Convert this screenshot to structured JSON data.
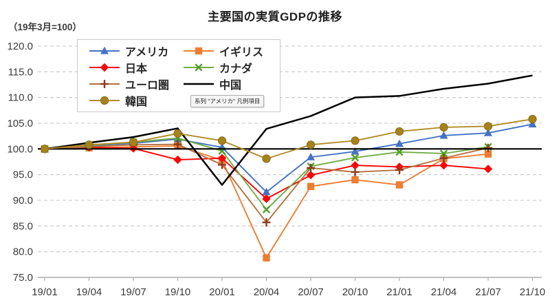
{
  "header": {
    "title": "主要国の実質GDPの推移",
    "unit_note": "（19年3月=100）"
  },
  "legend_tooltip": {
    "text": "系列 \"アメリカ\" 凡例項目"
  },
  "chart_data": {
    "type": "line",
    "title": "主要国の実質GDPの推移",
    "unit_note": "（19年3月=100）",
    "categories": [
      "19/01",
      "19/04",
      "19/07",
      "19/10",
      "20/01",
      "20/04",
      "20/07",
      "20/10",
      "21/01",
      "21/04",
      "21/07",
      "21/10"
    ],
    "y_ticks": [
      120,
      115,
      110,
      105,
      100,
      95,
      90,
      85,
      80,
      75
    ],
    "ylim": [
      75,
      120
    ],
    "reference_line": 100,
    "grid": "horizontal-dashed",
    "legend_position": "inside-top-left",
    "series": [
      {
        "id": "america",
        "name": "アメリカ",
        "marker": "triangle",
        "line_color": "#4472C4",
        "marker_color": "#4472C4",
        "values": [
          99.9,
          100.6,
          101.1,
          101.9,
          100.3,
          91.6,
          98.4,
          99.5,
          101.0,
          102.6,
          103.1,
          104.8
        ]
      },
      {
        "id": "uk",
        "name": "イギリス",
        "marker": "square",
        "line_color": "#ED7D31",
        "marker_color": "#ED7D31",
        "values": [
          100.0,
          100.2,
          100.4,
          100.6,
          97.8,
          78.8,
          92.7,
          94.0,
          93.0,
          98.1,
          99.0,
          null
        ]
      },
      {
        "id": "japan",
        "name": "日本",
        "marker": "diamond",
        "line_color": "#FF0000",
        "marker_color": "#FF0000",
        "values": [
          100.0,
          100.3,
          100.1,
          97.9,
          98.2,
          90.3,
          94.9,
          96.8,
          96.5,
          96.8,
          96.1,
          null
        ]
      },
      {
        "id": "canada",
        "name": "カナダ",
        "marker": "x",
        "line_color": "#70AD47",
        "marker_color": "#549E26",
        "values": [
          100.0,
          100.7,
          101.3,
          102.1,
          99.6,
          88.2,
          96.6,
          98.3,
          99.4,
          99.1,
          100.4,
          null
        ]
      },
      {
        "id": "euro",
        "name": "ユーロ圏",
        "marker": "plus",
        "line_color": "#B5713F",
        "marker_color": "#8E3A1B",
        "values": [
          100.0,
          100.4,
          100.8,
          100.9,
          96.9,
          85.7,
          96.3,
          95.5,
          95.9,
          98.2,
          100.2,
          null
        ]
      },
      {
        "id": "china",
        "name": "中国",
        "marker": "none",
        "line_color": "#000000",
        "marker_color": "#000000",
        "values": [
          100.0,
          101.2,
          102.3,
          104.0,
          93.0,
          103.9,
          106.4,
          110.0,
          110.3,
          111.7,
          112.7,
          114.3
        ]
      },
      {
        "id": "korea",
        "name": "韓国",
        "marker": "circle",
        "line_color": "#B08B27",
        "marker_color": "#A6821E",
        "values": [
          100.0,
          100.8,
          101.3,
          103.0,
          101.6,
          98.1,
          100.8,
          101.6,
          103.4,
          104.2,
          104.4,
          105.8
        ]
      }
    ]
  }
}
